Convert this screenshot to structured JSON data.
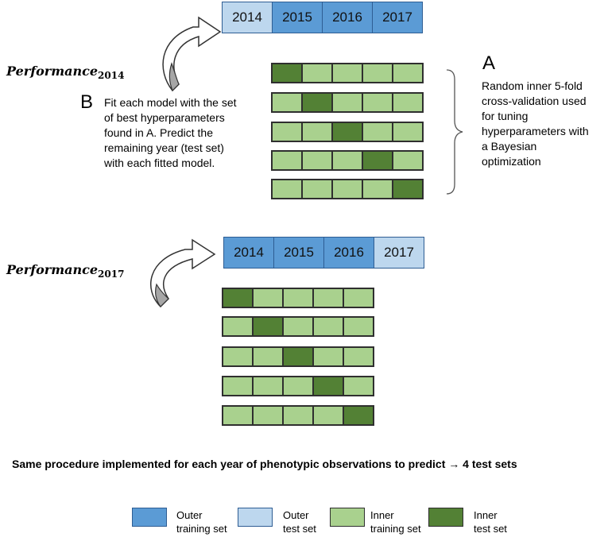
{
  "top_block": {
    "years": [
      {
        "label": "2014",
        "role": "outer-test"
      },
      {
        "label": "2015",
        "role": "outer-train"
      },
      {
        "label": "2016",
        "role": "outer-train"
      },
      {
        "label": "2017",
        "role": "outer-train"
      }
    ],
    "performance_base": "Performance",
    "performance_sub": "2014"
  },
  "bottom_block": {
    "years": [
      {
        "label": "2014",
        "role": "outer-train"
      },
      {
        "label": "2015",
        "role": "outer-train"
      },
      {
        "label": "2016",
        "role": "outer-train"
      },
      {
        "label": "2017",
        "role": "outer-test"
      }
    ],
    "performance_base": "Performance",
    "performance_sub": "2017"
  },
  "annotation_a": {
    "letter": "A",
    "lines": [
      "Random inner 5-fold",
      "cross-validation used",
      "for tuning",
      "hyperparameters with",
      "a  Bayesian",
      "optimization"
    ]
  },
  "annotation_b": {
    "letter": "B",
    "lines": [
      "Fit each model with the set",
      "of best hyperparameters",
      "found in A. Predict the",
      "remaining year (test set)",
      "with each fitted model."
    ]
  },
  "summary": {
    "text": "Same procedure implemented for each year of phenotypic observations to predict",
    "arrow": "→",
    "result": "4 test sets"
  },
  "folds": {
    "count": 5,
    "test_fold_index_per_row": [
      0,
      1,
      2,
      3,
      4
    ]
  },
  "legend": [
    {
      "line1": "Outer",
      "line2": "training set",
      "role": "outer-train"
    },
    {
      "line1": "Outer",
      "line2": "test set",
      "role": "outer-test"
    },
    {
      "line1": "Inner",
      "line2": "training set",
      "role": "inner-train"
    },
    {
      "line1": "Inner",
      "line2": "test set",
      "role": "inner-test"
    }
  ],
  "colors": {
    "outer_train": "#5b9bd5",
    "outer_test": "#bdd7ee",
    "inner_train": "#a9d18e",
    "inner_test": "#538135"
  }
}
